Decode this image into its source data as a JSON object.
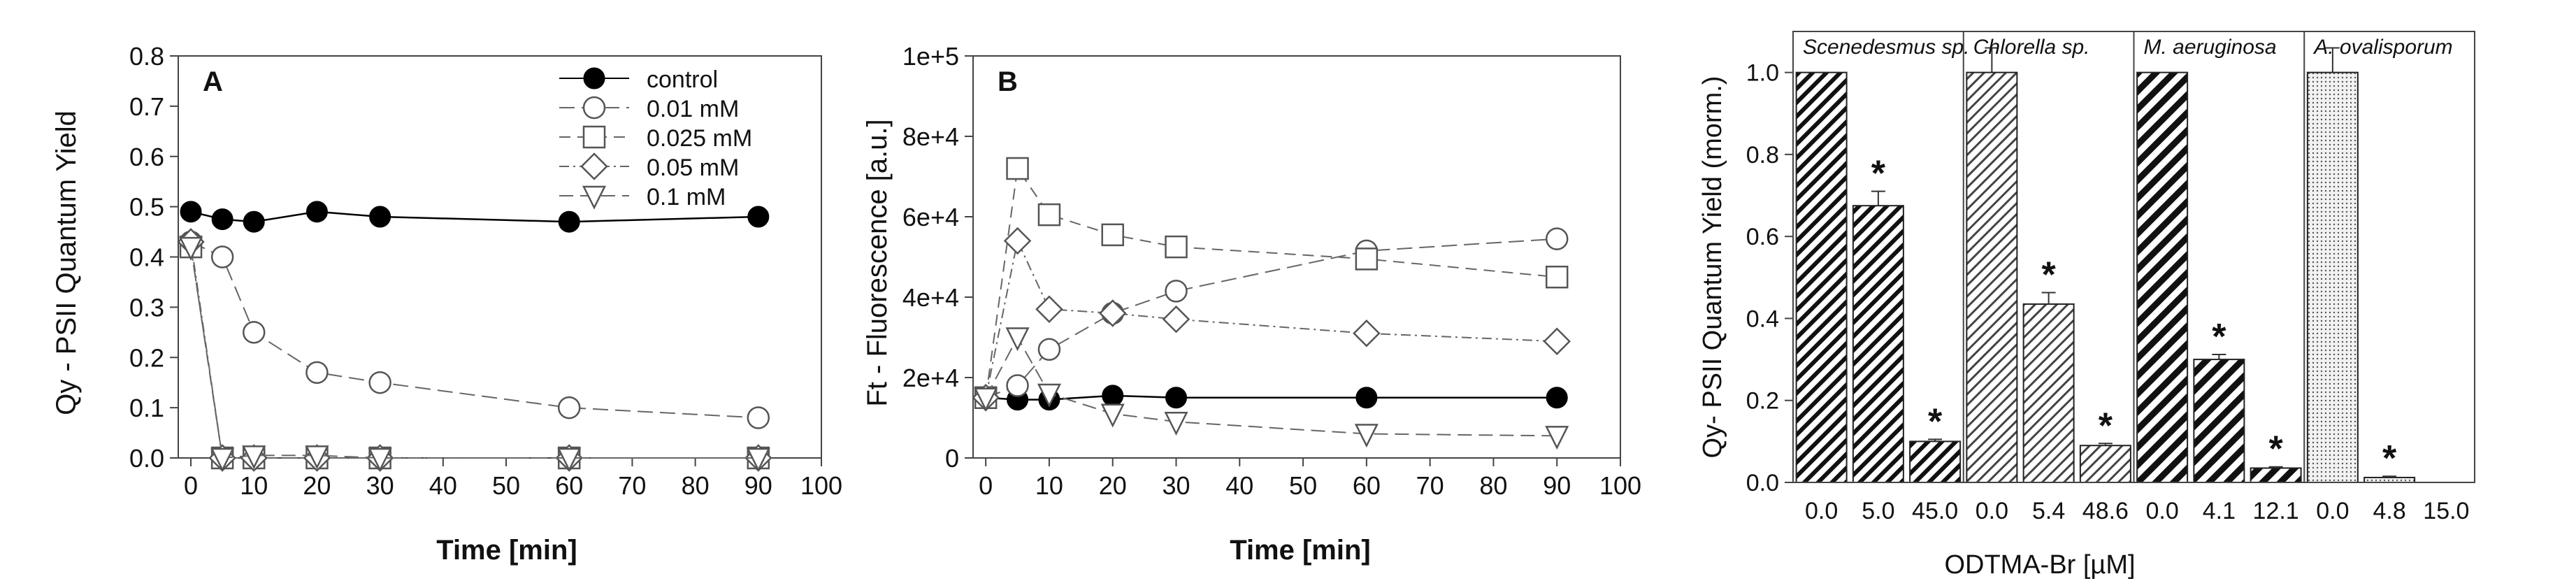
{
  "chart_data": [
    {
      "type": "line",
      "panel_label": "A",
      "xlabel": "Time [min]",
      "ylabel": "Qy - PSII Quantum Yield",
      "xlim": [
        -2,
        100
      ],
      "ylim": [
        0,
        0.8
      ],
      "xticks": [
        "0",
        "10",
        "20",
        "30",
        "40",
        "50",
        "60",
        "70",
        "80",
        "90",
        "100"
      ],
      "yticks": [
        "0.0",
        "0.1",
        "0.2",
        "0.3",
        "0.4",
        "0.5",
        "0.6",
        "0.7",
        "0.8"
      ],
      "legend_position": "top-right",
      "series": [
        {
          "name": "control",
          "marker": "filled-circle",
          "x": [
            0,
            5,
            10,
            20,
            30,
            60,
            90
          ],
          "values": [
            0.49,
            0.475,
            0.47,
            0.49,
            0.48,
            0.47,
            0.48
          ]
        },
        {
          "name": "0.01  mM",
          "marker": "open-circle",
          "x": [
            0,
            5,
            10,
            20,
            30,
            60,
            90
          ],
          "values": [
            0.43,
            0.4,
            0.25,
            0.17,
            0.15,
            0.1,
            0.08
          ]
        },
        {
          "name": "0.025 mM",
          "marker": "open-square",
          "x": [
            0,
            5,
            10,
            20,
            30,
            60,
            90
          ],
          "values": [
            0.42,
            0.0,
            0.0,
            0.0,
            0.0,
            0.0,
            0.0
          ]
        },
        {
          "name": "0.05  mM",
          "marker": "open-diamond",
          "x": [
            0,
            5,
            10,
            20,
            30,
            60,
            90
          ],
          "values": [
            0.43,
            0.0,
            0.0,
            0.0,
            0.0,
            0.0,
            0.0
          ]
        },
        {
          "name": "0.1   mM",
          "marker": "open-triangle-down",
          "x": [
            0,
            5,
            10,
            20,
            30,
            60,
            90
          ],
          "values": [
            0.42,
            0.0,
            0.005,
            0.005,
            0.0,
            0.0,
            0.0
          ]
        }
      ]
    },
    {
      "type": "line",
      "panel_label": "B",
      "xlabel": "Time [min]",
      "ylabel": "Ft - Fluorescence [a.u.]",
      "xlim": [
        -2,
        100
      ],
      "ylim": [
        0,
        100000
      ],
      "xticks": [
        "0",
        "10",
        "20",
        "30",
        "40",
        "50",
        "60",
        "70",
        "80",
        "90",
        "100"
      ],
      "yticks": [
        "0",
        "2e+4",
        "4e+4",
        "6e+4",
        "8e+4",
        "1e+5"
      ],
      "series": [
        {
          "marker": "filled-circle",
          "x": [
            0,
            5,
            10,
            20,
            30,
            60,
            90
          ],
          "values": [
            15000,
            14500,
            14500,
            15500,
            15000,
            15000,
            15000
          ]
        },
        {
          "marker": "open-circle",
          "x": [
            0,
            5,
            10,
            20,
            30,
            60,
            90
          ],
          "values": [
            15000,
            18000,
            27000,
            36000,
            41500,
            51500,
            54500
          ]
        },
        {
          "marker": "open-square",
          "x": [
            0,
            5,
            10,
            20,
            30,
            60,
            90
          ],
          "values": [
            15000,
            72000,
            60500,
            55500,
            52500,
            49500,
            45000
          ]
        },
        {
          "marker": "open-diamond",
          "x": [
            0,
            5,
            10,
            20,
            30,
            60,
            90
          ],
          "values": [
            15000,
            54000,
            37000,
            36000,
            34500,
            31000,
            29000
          ]
        },
        {
          "marker": "open-triangle-down",
          "x": [
            0,
            5,
            10,
            20,
            30,
            60,
            90
          ],
          "values": [
            15000,
            30000,
            16000,
            11000,
            9000,
            6000,
            5500
          ]
        }
      ]
    },
    {
      "type": "bar",
      "xlabel": "ODTMA-Br [µM]",
      "ylabel": "Qy- PSII Quantum Yield (morm.)",
      "ylim": [
        0,
        1.1
      ],
      "yticks": [
        "0.0",
        "0.2",
        "0.4",
        "0.6",
        "0.8",
        "1.0"
      ],
      "groups": [
        {
          "name": "Scenedesmus sp.",
          "pattern": "hatch-dense",
          "categories": [
            "0.0",
            "5.0",
            "45.0"
          ],
          "values": [
            1.0,
            0.675,
            0.1
          ],
          "errors": [
            0.0,
            0.035,
            0.005
          ],
          "significant": [
            false,
            true,
            true
          ]
        },
        {
          "name": "Chlorella sp.",
          "pattern": "hatch-light",
          "categories": [
            "0.0",
            "5.4",
            "48.6"
          ],
          "values": [
            1.0,
            0.435,
            0.09
          ],
          "errors": [
            0.06,
            0.028,
            0.005
          ],
          "significant": [
            false,
            true,
            true
          ]
        },
        {
          "name": "M. aeruginosa",
          "pattern": "hatch-bold",
          "categories": [
            "0.0",
            "4.1",
            "12.1"
          ],
          "values": [
            1.0,
            0.3,
            0.035
          ],
          "errors": [
            0.0,
            0.012,
            0.003
          ],
          "significant": [
            false,
            true,
            true
          ]
        },
        {
          "name": "A. ovalisporum",
          "pattern": "dots",
          "categories": [
            "0.0",
            "4.8",
            "15.0"
          ],
          "values": [
            1.0,
            0.012,
            0.0
          ],
          "errors": [
            0.06,
            0.003,
            0.0
          ],
          "significant": [
            false,
            true,
            false
          ]
        }
      ],
      "significance_marker": "*"
    }
  ]
}
